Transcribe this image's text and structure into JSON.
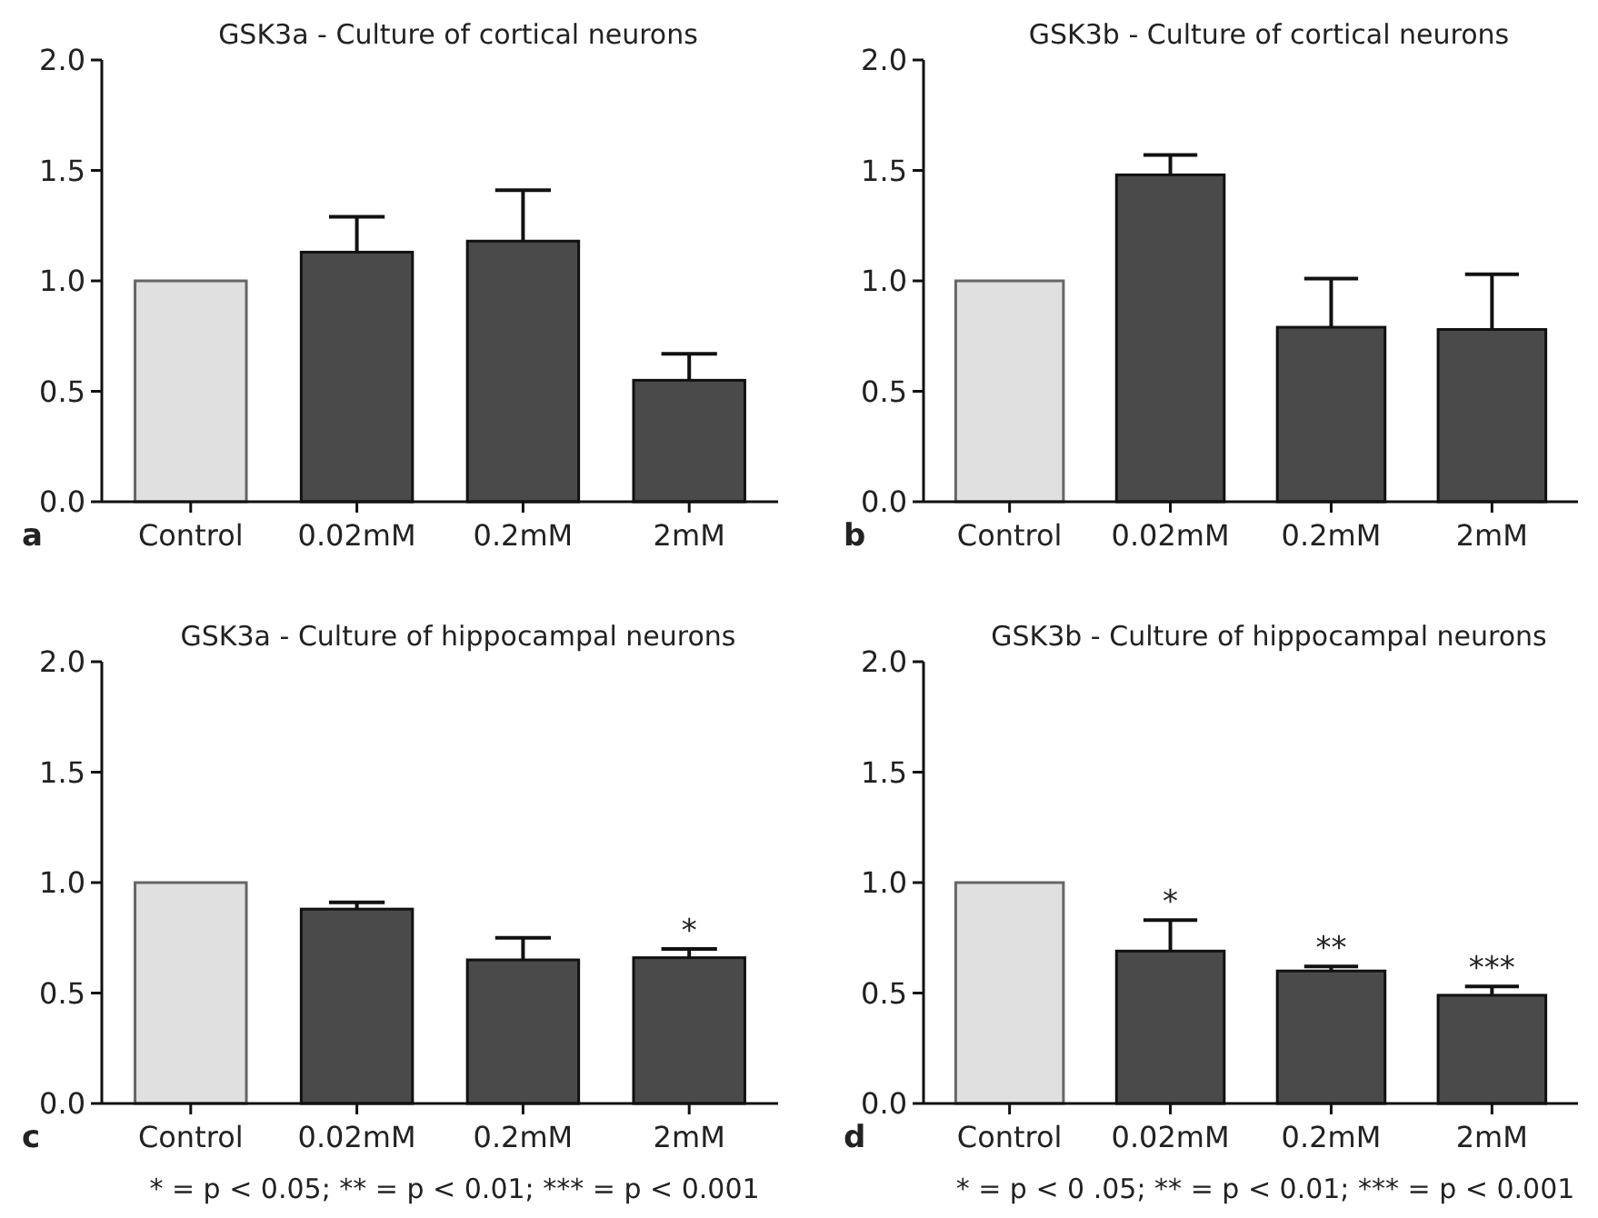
{
  "chart_data": [
    {
      "type": "bar",
      "title": "GSK3a - Culture of cortical neurons",
      "categories": [
        "Control",
        "0.02mM",
        "0.2mM",
        "2mM"
      ],
      "values": [
        1.0,
        1.13,
        1.18,
        0.55
      ],
      "colors": [
        "#e0e0e0",
        "#4a4a4a",
        "#4a4a4a",
        "#4a4a4a"
      ],
      "errors": [
        null,
        [
          1.13,
          1.29
        ],
        [
          1.18,
          1.41
        ],
        [
          0.55,
          0.67
        ]
      ],
      "ylim": [
        0,
        2
      ],
      "yticks": [
        {
          "value": 0,
          "label": "0.0"
        },
        {
          "value": 0.5,
          "label": "0.5"
        },
        {
          "value": 1,
          "label": "1.0"
        },
        {
          "value": 1.5,
          "label": "1.5"
        },
        {
          "value": 2,
          "label": "2.0"
        }
      ],
      "grid": false,
      "annotations": [
        "a"
      ]
    },
    {
      "type": "bar",
      "title": "GSK3b - Culture of cortical neurons",
      "categories": [
        "Control",
        "0.02mM",
        "0.2mM",
        "2mM"
      ],
      "values": [
        1.0,
        1.48,
        0.79,
        0.78
      ],
      "colors": [
        "#e0e0e0",
        "#4a4a4a",
        "#4a4a4a",
        "#4a4a4a"
      ],
      "errors": [
        null,
        [
          1.48,
          1.57
        ],
        [
          0.79,
          1.01
        ],
        [
          0.78,
          1.03
        ]
      ],
      "ylim": [
        0,
        2
      ],
      "yticks": [
        {
          "value": 0,
          "label": "0.0"
        },
        {
          "value": 0.5,
          "label": "0.5"
        },
        {
          "value": 1,
          "label": "1.0"
        },
        {
          "value": 1.5,
          "label": "1.5"
        },
        {
          "value": 2,
          "label": "2.0"
        }
      ],
      "grid": false,
      "annotations": [
        "b"
      ]
    },
    {
      "type": "bar",
      "title": "GSK3a - Culture of hippocampal neurons",
      "categories": [
        "Control",
        "0.02mM",
        "0.2mM",
        "2mM"
      ],
      "values": [
        1.0,
        0.88,
        0.65,
        0.66
      ],
      "colors": [
        "#e0e0e0",
        "#4a4a4a",
        "#4a4a4a",
        "#4a4a4a"
      ],
      "errors": [
        null,
        [
          0.88,
          0.91
        ],
        [
          0.65,
          0.75
        ],
        [
          0.66,
          0.7
        ]
      ],
      "ylim": [
        0,
        2
      ],
      "yticks": [
        {
          "value": 0,
          "label": "0.0"
        },
        {
          "value": 0.5,
          "label": "0.5"
        },
        {
          "value": 1,
          "label": "1.0"
        },
        {
          "value": 1.5,
          "label": "1.5"
        },
        {
          "value": 2,
          "label": "2.0"
        }
      ],
      "grid": false,
      "annotations": [
        "c",
        "* = p < 0.05;  ** = p < 0.01;  *** = p < 0.001",
        {
          "text": "*",
          "x": "2mM",
          "y": 0.7
        }
      ]
    },
    {
      "type": "bar",
      "title": "GSK3b - Culture of hippocampal neurons",
      "categories": [
        "Control",
        "0.02mM",
        "0.2mM",
        "2mM"
      ],
      "values": [
        1.0,
        0.69,
        0.6,
        0.49
      ],
      "colors": [
        "#e0e0e0",
        "#4a4a4a",
        "#4a4a4a",
        "#4a4a4a"
      ],
      "errors": [
        null,
        [
          0.69,
          0.83
        ],
        [
          0.6,
          0.62
        ],
        [
          0.49,
          0.53
        ]
      ],
      "ylim": [
        0,
        2
      ],
      "yticks": [
        {
          "value": 0,
          "label": "0.0"
        },
        {
          "value": 0.5,
          "label": "0.5"
        },
        {
          "value": 1,
          "label": "1.0"
        },
        {
          "value": 1.5,
          "label": "1.5"
        },
        {
          "value": 2,
          "label": "2.0"
        }
      ],
      "grid": false,
      "annotations": [
        "d",
        "* = p < 0 .05;  ** = p < 0.01;  *** = p < 0.001",
        {
          "text": "*",
          "x": "0.02mM",
          "y": 0.83
        },
        {
          "text": "**",
          "x": "0.2mM",
          "y": 0.62
        },
        {
          "text": "***",
          "x": "2mM",
          "y": 0.53
        }
      ]
    }
  ]
}
